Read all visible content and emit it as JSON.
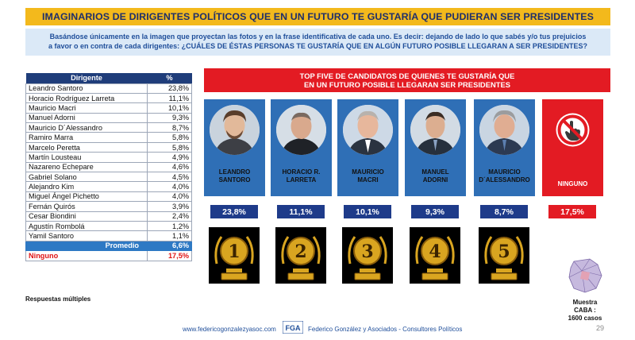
{
  "title": "IMAGINARIOS DE DIRIGENTES POLÍTICOS QUE EN UN FUTURO TE GUSTARÍA QUE PUDIERAN SER PRESIDENTES",
  "subtitle": {
    "line1": "Basándose únicamente en la imagen que proyectan las fotos y en la frase identificativa de cada uno. Es decir: dejando de lado lo que sabés y/o tus prejuicios",
    "line2": "a favor o en contra de cada dirigentes: ¿CUÁLES DE ÉSTAS PERSONAS TE GUSTARÍA QUE EN ALGÚN FUTURO POSIBLE LLEGARAN A SER PRESIDENTES?"
  },
  "table": {
    "header_name": "Dirigente",
    "header_pct": "%",
    "rows": [
      {
        "name": "Leandro Santoro",
        "pct": "23,8%"
      },
      {
        "name": "Horacio Rodríguez Larreta",
        "pct": "11,1%"
      },
      {
        "name": "Mauricio Macri",
        "pct": "10,1%"
      },
      {
        "name": "Manuel Adorni",
        "pct": "9,3%"
      },
      {
        "name": "Mauricio D´Alessandro",
        "pct": "8,7%"
      },
      {
        "name": "Ramiro Marra",
        "pct": "5,8%"
      },
      {
        "name": "Marcelo Peretta",
        "pct": "5,8%"
      },
      {
        "name": "Martín Lousteau",
        "pct": "4,9%"
      },
      {
        "name": "Nazareno Echepare",
        "pct": "4,6%"
      },
      {
        "name": "Gabriel Solano",
        "pct": "4,5%"
      },
      {
        "name": "Alejandro Kim",
        "pct": "4,0%"
      },
      {
        "name": "Miguel Ángel Pichetto",
        "pct": "4,0%"
      },
      {
        "name": "Fernán Quirós",
        "pct": "3,9%"
      },
      {
        "name": "Cesar Biondini",
        "pct": "2,4%"
      },
      {
        "name": "Agustín Rombolá",
        "pct": "1,2%"
      },
      {
        "name": "Yamil Santoro",
        "pct": "1,1%"
      }
    ],
    "promedio_label": "Promedio",
    "promedio_pct": "6,6%",
    "ninguno_label": "Ninguno",
    "ninguno_pct": "17,5%"
  },
  "multiple_note": "Respuestas múltiples",
  "top5": {
    "banner_line1": "TOP FIVE DE CANDIDATOS DE QUIENES TE GUSTARÍA QUE",
    "banner_line2": "EN UN FUTURO POSIBLE LLEGARAN  SER PRESIDENTES",
    "cards": [
      {
        "line1": "LEANDRO",
        "line2": "SANTORO",
        "pct": "23,8%",
        "rank": "1"
      },
      {
        "line1": "HORACIO R.",
        "line2": "LARRETA",
        "pct": "11,1%",
        "rank": "2"
      },
      {
        "line1": "MAURICIO",
        "line2": "MACRI",
        "pct": "10,1%",
        "rank": "3"
      },
      {
        "line1": "MANUEL",
        "line2": "ADORNI",
        "pct": "9,3%",
        "rank": "4"
      },
      {
        "line1": "MAURICIO",
        "line2": "D´ALESSANDRO",
        "pct": "8,7%",
        "rank": "5"
      }
    ],
    "none_card": {
      "label": "NINGUNO",
      "pct": "17,5%"
    }
  },
  "sample": {
    "line1": "Muestra",
    "line2": "CABA :",
    "line3": "1600 casos"
  },
  "footer": {
    "url": "www.federicogonzalezyasoc.com",
    "logo_text": "FGA",
    "firm": "Federico González y Asociados - Consultores Políticos",
    "page": "29"
  },
  "colors": {
    "title_bg": "#f3b91c",
    "accent_red": "#e31b23",
    "navy": "#1e3b8a",
    "card_blue": "#2f6fb6",
    "gold": "#d9a520"
  },
  "chart_data": {
    "type": "table",
    "title": "IMAGINARIOS DE DIRIGENTES POLÍTICOS QUE EN UN FUTURO TE GUSTARÍA QUE PUDIERAN SER PRESIDENTES",
    "columns": [
      "Dirigente",
      "%"
    ],
    "categories": [
      "Leandro Santoro",
      "Horacio Rodríguez Larreta",
      "Mauricio Macri",
      "Manuel Adorni",
      "Mauricio D´Alessandro",
      "Ramiro Marra",
      "Marcelo Peretta",
      "Martín Lousteau",
      "Nazareno Echepare",
      "Gabriel Solano",
      "Alejandro Kim",
      "Miguel Ángel Pichetto",
      "Fernán Quirós",
      "Cesar Biondini",
      "Agustín Rombolá",
      "Yamil Santoro",
      "Promedio",
      "Ninguno"
    ],
    "values": [
      23.8,
      11.1,
      10.1,
      9.3,
      8.7,
      5.8,
      5.8,
      4.9,
      4.6,
      4.5,
      4.0,
      4.0,
      3.9,
      2.4,
      1.2,
      1.1,
      6.6,
      17.5
    ],
    "unit": "%"
  }
}
